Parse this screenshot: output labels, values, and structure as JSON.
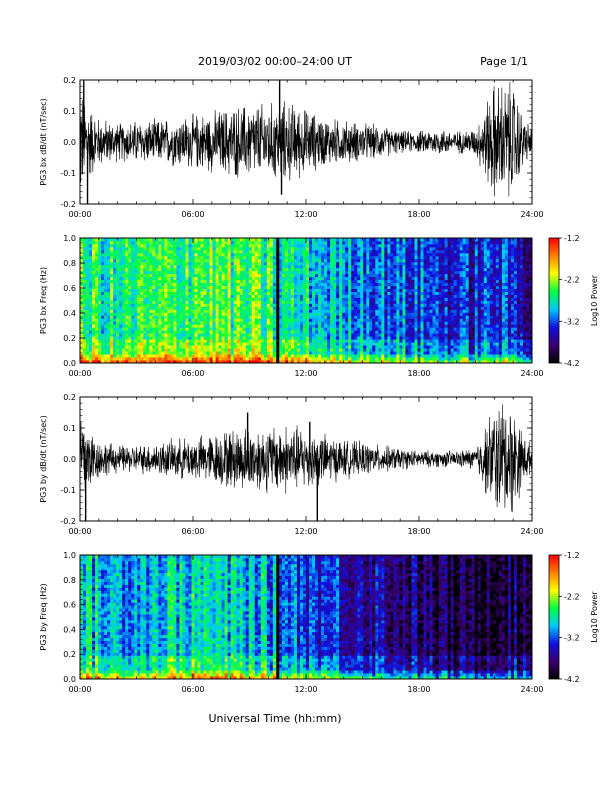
{
  "header": {
    "title": "2019/03/02   00:00–24:00 UT",
    "page": "Page 1/1"
  },
  "footer": {
    "xlabel": "Universal Time (hh:mm)"
  },
  "colors": {
    "colormap": [
      "#000000",
      "#3a0070",
      "#1010e0",
      "#00c8ff",
      "#00ff40",
      "#ffff00",
      "#ff8000",
      "#ff0000"
    ]
  },
  "chart_data": [
    {
      "type": "line",
      "ylabel": "PG3 bx dB/dt (nT/sec)",
      "xlim": [
        0,
        24
      ],
      "ylim": [
        -0.2,
        0.2
      ],
      "xticks": [
        "00:00",
        "06:00",
        "12:00",
        "18:00",
        "24:00"
      ],
      "yticks": [
        "-0.2",
        "-0.1",
        "0.0",
        "0.1",
        "0.2"
      ],
      "envelope": {
        "hours": [
          0,
          0.5,
          1,
          2,
          3,
          4,
          5,
          6,
          7,
          8,
          9,
          10,
          11,
          12,
          13,
          14,
          15,
          16,
          17,
          18,
          19,
          20,
          21,
          22,
          22.5,
          23,
          23.5,
          24
        ],
        "amplitude": [
          0.22,
          0.14,
          0.09,
          0.07,
          0.08,
          0.08,
          0.09,
          0.1,
          0.11,
          0.13,
          0.14,
          0.14,
          0.15,
          0.12,
          0.09,
          0.08,
          0.07,
          0.06,
          0.04,
          0.04,
          0.05,
          0.04,
          0.05,
          0.22,
          0.22,
          0.22,
          0.1,
          0.05
        ]
      },
      "spikes": [
        {
          "hour": 0.2,
          "value": 0.22
        },
        {
          "hour": 0.4,
          "value": -0.22
        },
        {
          "hour": 10.6,
          "value": 0.2
        },
        {
          "hour": 10.7,
          "value": -0.17
        }
      ]
    },
    {
      "type": "heatmap",
      "ylabel": "PG3 bx Freq (Hz)",
      "xlim": [
        0,
        24
      ],
      "ylim": [
        0,
        1
      ],
      "xticks": [
        "00:00",
        "06:00",
        "12:00",
        "18:00",
        "24:00"
      ],
      "yticks": [
        "0.0",
        "0.2",
        "0.4",
        "0.6",
        "0.8",
        "1.0"
      ],
      "colorbar": {
        "label": "Log10 Power",
        "range": [
          -4.2,
          -1.2
        ],
        "ticks": [
          "-1.2",
          "-2.2",
          "-3.2",
          "-4.2"
        ]
      },
      "log_power_profile": {
        "hours": [
          0,
          1,
          2,
          3,
          4,
          5,
          6,
          7,
          8,
          9,
          10,
          11,
          12,
          13,
          14,
          15,
          16,
          17,
          18,
          19,
          20,
          21,
          22,
          23,
          24
        ],
        "log_power": [
          -2.6,
          -2.6,
          -2.7,
          -2.6,
          -2.6,
          -2.5,
          -2.4,
          -2.4,
          -2.5,
          -2.5,
          -2.6,
          -2.7,
          -2.8,
          -2.9,
          -3.0,
          -3.0,
          -3.1,
          -3.2,
          -3.2,
          -3.3,
          -3.4,
          -3.4,
          -3.3,
          -3.4,
          -3.5
        ]
      },
      "data_gap_hour": 10.5
    },
    {
      "type": "line",
      "ylabel": "PG3 by dB/dt (nT/sec)",
      "xlim": [
        0,
        24
      ],
      "ylim": [
        -0.2,
        0.2
      ],
      "xticks": [
        "00:00",
        "06:00",
        "12:00",
        "18:00",
        "24:00"
      ],
      "yticks": [
        "-0.2",
        "-0.1",
        "0.0",
        "0.1",
        "0.2"
      ],
      "envelope": {
        "hours": [
          0,
          0.5,
          1,
          2,
          3,
          4,
          5,
          6,
          7,
          8,
          9,
          10,
          11,
          12,
          13,
          14,
          15,
          16,
          17,
          18,
          19,
          20,
          21,
          22,
          22.5,
          23,
          23.5,
          24
        ],
        "amplitude": [
          0.22,
          0.12,
          0.07,
          0.05,
          0.05,
          0.06,
          0.07,
          0.08,
          0.09,
          0.11,
          0.12,
          0.12,
          0.13,
          0.11,
          0.09,
          0.07,
          0.06,
          0.05,
          0.04,
          0.03,
          0.03,
          0.03,
          0.04,
          0.2,
          0.22,
          0.2,
          0.1,
          0.05
        ]
      },
      "spikes": [
        {
          "hour": 0.3,
          "value": -0.22
        },
        {
          "hour": 8.9,
          "value": 0.15
        },
        {
          "hour": 12.6,
          "value": -0.2
        },
        {
          "hour": 12.2,
          "value": 0.12
        }
      ]
    },
    {
      "type": "heatmap",
      "ylabel": "PG3 by Freq (Hz)",
      "xlim": [
        0,
        24
      ],
      "ylim": [
        0,
        1
      ],
      "xticks": [
        "00:00",
        "06:00",
        "12:00",
        "18:00",
        "24:00"
      ],
      "yticks": [
        "0.0",
        "0.2",
        "0.4",
        "0.6",
        "0.8",
        "1.0"
      ],
      "colorbar": {
        "label": "Log10 Power",
        "range": [
          -4.2,
          -1.2
        ],
        "ticks": [
          "-1.2",
          "-2.2",
          "-3.2",
          "-4.2"
        ]
      },
      "log_power_profile": {
        "hours": [
          0,
          1,
          2,
          3,
          4,
          5,
          6,
          7,
          8,
          9,
          10,
          11,
          12,
          13,
          14,
          15,
          16,
          17,
          18,
          19,
          20,
          21,
          22,
          23,
          24
        ],
        "log_power": [
          -2.9,
          -2.9,
          -3.0,
          -2.9,
          -2.9,
          -2.8,
          -2.8,
          -2.8,
          -2.9,
          -2.9,
          -3.0,
          -3.1,
          -3.2,
          -3.3,
          -3.4,
          -3.5,
          -3.6,
          -3.7,
          -3.8,
          -3.9,
          -4.0,
          -4.0,
          -3.8,
          -3.9,
          -3.9
        ]
      },
      "data_gap_hour": 10.5
    }
  ]
}
